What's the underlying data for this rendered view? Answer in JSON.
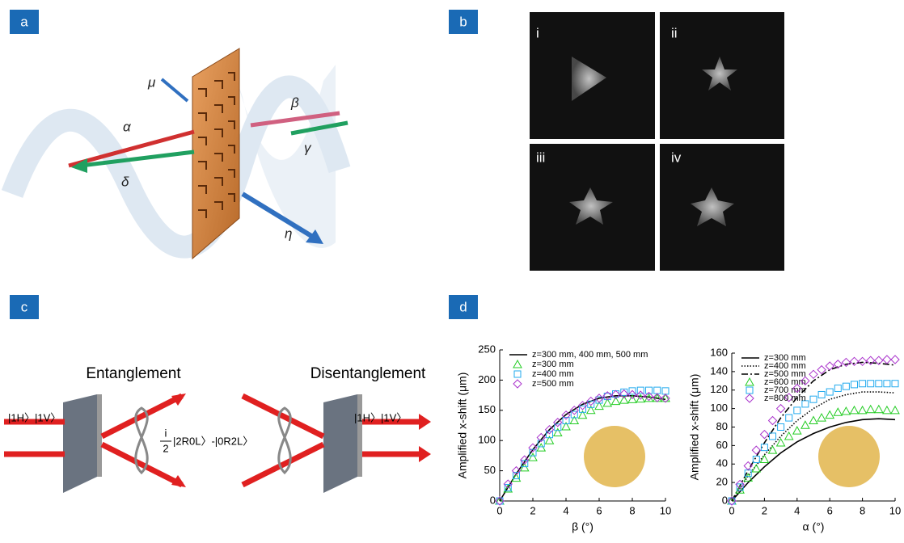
{
  "panels": {
    "a": {
      "label": "a",
      "symbols": [
        "μ",
        "α",
        "β",
        "γ",
        "δ",
        "η"
      ]
    },
    "b": {
      "label": "b",
      "images": [
        "i",
        "ii",
        "iii",
        "iv"
      ]
    },
    "c": {
      "label": "c",
      "left_title": "Entanglement",
      "right_title": "Disentanglement",
      "input_state": "|1H〉|1V〉",
      "output_state": "|1H〉|1V〉",
      "frac_num": "i",
      "frac_den": "2",
      "expr": "|2R0L〉-|0R2L〉"
    },
    "d": {
      "label": "d"
    }
  },
  "chart_data": [
    {
      "type": "line",
      "xlabel": "β (°)",
      "ylabel": "Amplified x-shift (μm)",
      "xlim": [
        0,
        10
      ],
      "ylim": [
        0,
        250
      ],
      "xticks": [
        0,
        2,
        4,
        6,
        8,
        10
      ],
      "yticks": [
        0,
        50,
        100,
        150,
        200,
        250
      ],
      "legend": "upper left",
      "series": [
        {
          "name": "z=300 mm, 400 mm, 500 mm",
          "color": "#000000",
          "style": "solid",
          "x": [
            0,
            1,
            2,
            3,
            4,
            5,
            6,
            7,
            8,
            9,
            10
          ],
          "values": [
            0,
            45,
            85,
            118,
            143,
            160,
            170,
            174,
            174,
            172,
            168
          ]
        },
        {
          "name": "z=300 mm",
          "color": "#22cc22",
          "marker": "triangle",
          "x": [
            0,
            0.5,
            1,
            1.5,
            2,
            2.5,
            3,
            3.5,
            4,
            4.5,
            5,
            5.5,
            6,
            6.5,
            7,
            7.5,
            8,
            8.5,
            9,
            9.5,
            10
          ],
          "values": [
            0,
            20,
            38,
            55,
            72,
            88,
            100,
            113,
            123,
            133,
            142,
            150,
            157,
            162,
            165,
            167,
            168,
            169,
            170,
            170,
            170
          ]
        },
        {
          "name": "z=400 mm",
          "color": "#22aaee",
          "marker": "square",
          "x": [
            0,
            0.5,
            1,
            1.5,
            2,
            2.5,
            3,
            3.5,
            4,
            4.5,
            5,
            5.5,
            6,
            6.5,
            7,
            7.5,
            8,
            8.5,
            9,
            9.5,
            10
          ],
          "values": [
            0,
            22,
            42,
            62,
            80,
            95,
            110,
            122,
            133,
            143,
            152,
            160,
            167,
            173,
            177,
            180,
            182,
            183,
            183,
            183,
            182
          ]
        },
        {
          "name": "z=500 mm",
          "color": "#aa33cc",
          "marker": "diamond",
          "x": [
            0,
            0.5,
            1,
            1.5,
            2,
            2.5,
            3,
            3.5,
            4,
            4.5,
            5,
            5.5,
            6,
            6.5,
            7,
            7.5,
            8,
            8.5,
            9,
            9.5,
            10
          ],
          "values": [
            0,
            28,
            50,
            68,
            88,
            105,
            118,
            130,
            142,
            150,
            158,
            165,
            170,
            174,
            176,
            177,
            176,
            175,
            173,
            171,
            170
          ]
        }
      ]
    },
    {
      "type": "line",
      "xlabel": "α (°)",
      "ylabel": "Amplified x-shift (μm)",
      "xlim": [
        0,
        10
      ],
      "ylim": [
        0,
        160
      ],
      "xticks": [
        0,
        2,
        4,
        6,
        8,
        10
      ],
      "yticks": [
        0,
        20,
        40,
        60,
        80,
        100,
        120,
        140,
        160
      ],
      "legend": "upper left",
      "series": [
        {
          "name": "z=300 mm",
          "color": "#000000",
          "style": "solid",
          "x": [
            0,
            1,
            2,
            3,
            4,
            5,
            6,
            7,
            8,
            9,
            10
          ],
          "values": [
            0,
            20,
            37,
            52,
            64,
            73,
            80,
            85,
            88,
            89,
            88
          ]
        },
        {
          "name": "z=400 mm",
          "color": "#000000",
          "style": "dotted",
          "x": [
            0,
            1,
            2,
            3,
            4,
            5,
            6,
            7,
            8,
            9,
            10
          ],
          "values": [
            0,
            27,
            50,
            70,
            87,
            100,
            110,
            115,
            118,
            118,
            117
          ]
        },
        {
          "name": "z=500 mm",
          "color": "#000000",
          "style": "dashdot",
          "x": [
            0,
            1,
            2,
            3,
            4,
            5,
            6,
            7,
            8,
            9,
            10
          ],
          "values": [
            0,
            33,
            63,
            90,
            112,
            130,
            142,
            148,
            150,
            149,
            147
          ]
        },
        {
          "name": "z=600 mm",
          "color": "#22cc22",
          "marker": "triangle",
          "x": [
            0,
            0.5,
            1,
            1.5,
            2,
            2.5,
            3,
            3.5,
            4,
            4.5,
            5,
            5.5,
            6,
            6.5,
            7,
            7.5,
            8,
            8.5,
            9,
            9.5,
            10
          ],
          "values": [
            0,
            12,
            25,
            35,
            45,
            55,
            63,
            70,
            76,
            82,
            87,
            90,
            93,
            96,
            97,
            98,
            98,
            99,
            99,
            98,
            98
          ]
        },
        {
          "name": "z=700 mm",
          "color": "#22aaee",
          "marker": "square",
          "x": [
            0,
            0.5,
            1,
            1.5,
            2,
            2.5,
            3,
            3.5,
            4,
            4.5,
            5,
            5.5,
            6,
            6.5,
            7,
            7.5,
            8,
            8.5,
            9,
            9.5,
            10
          ],
          "values": [
            0,
            15,
            30,
            45,
            58,
            70,
            80,
            90,
            98,
            105,
            110,
            115,
            118,
            122,
            124,
            126,
            127,
            127,
            127,
            127,
            127
          ]
        },
        {
          "name": "z=800 mm",
          "color": "#aa33cc",
          "marker": "diamond",
          "x": [
            0,
            0.5,
            1,
            1.5,
            2,
            2.5,
            3,
            3.5,
            4,
            4.5,
            5,
            5.5,
            6,
            6.5,
            7,
            7.5,
            8,
            8.5,
            9,
            9.5,
            10
          ],
          "values": [
            0,
            18,
            38,
            55,
            72,
            87,
            100,
            112,
            122,
            130,
            137,
            142,
            146,
            148,
            150,
            151,
            151,
            152,
            152,
            153,
            153
          ]
        }
      ]
    }
  ]
}
